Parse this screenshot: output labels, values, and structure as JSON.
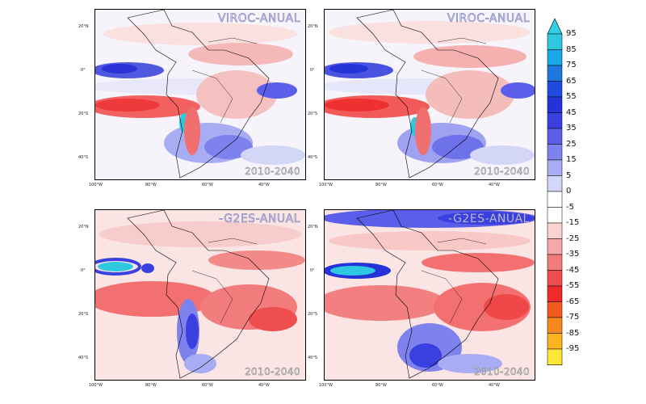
{
  "panels": [
    {
      "id": "viroc-1",
      "model_label": "VIROC-ANUAL",
      "period": "2010-2040",
      "lat_ticks": [
        "20°N",
        "0°",
        "20°S",
        "40°S"
      ],
      "lon_ticks": [
        "100°W",
        "80°W",
        "60°W",
        "40°W"
      ]
    },
    {
      "id": "viroc-2",
      "model_label": "VIROC-ANUAL",
      "period": "2010-2040",
      "lat_ticks": [
        "20°N",
        "0°",
        "20°S",
        "40°S"
      ],
      "lon_ticks": [
        "100°W",
        "80°W",
        "60°W",
        "40°W"
      ]
    },
    {
      "id": "g2es-1",
      "model_label": "-G2ES-ANUAL",
      "period": "2010-2040",
      "lat_ticks": [
        "20°N",
        "0°",
        "20°S",
        "40°S"
      ],
      "lon_ticks": [
        "100°W",
        "80°W",
        "60°W",
        "40°W"
      ]
    },
    {
      "id": "g2es-2",
      "model_label": "-G2ES-ANUAL",
      "period": "2010-2040",
      "lat_ticks": [
        "20°N",
        "0°",
        "20°S",
        "40°S"
      ],
      "lon_ticks": [
        "100°W",
        "80°W",
        "60°W",
        "40°W"
      ]
    }
  ],
  "colorbar": {
    "labels": [
      "95",
      "85",
      "75",
      "65",
      "55",
      "45",
      "35",
      "25",
      "15",
      "5",
      "0",
      "-5",
      "-15",
      "-25",
      "-35",
      "-45",
      "-55",
      "-65",
      "-75",
      "-85",
      "-95"
    ],
    "colors": [
      "#30c8e0",
      "#1aa8e8",
      "#1e78e0",
      "#1e4ce0",
      "#2432d8",
      "#3a40e0",
      "#5a5ee8",
      "#7e82ec",
      "#a8acf2",
      "#d4d6f8",
      "#ffffff",
      "#ffffff",
      "#fad2d2",
      "#f5a8a8",
      "#f27c7c",
      "#ef4e4e",
      "#ee2a2a",
      "#f25a1e",
      "#f7881e",
      "#fbb420",
      "#fde83a"
    ],
    "top_arrow_color": "#30d0e8",
    "bottom_arrow_color": "#ffe830"
  }
}
